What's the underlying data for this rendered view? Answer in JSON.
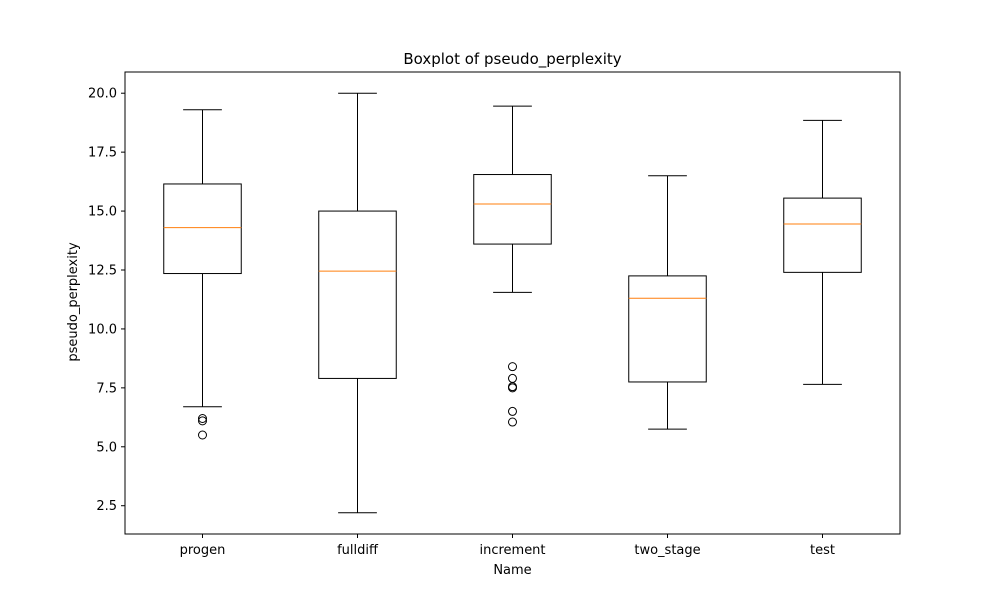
{
  "chart_data": {
    "type": "box",
    "title": "Boxplot of pseudo_perplexity",
    "xlabel": "Name",
    "ylabel": "pseudo_perplexity",
    "ylim": [
      1.3,
      20.9
    ],
    "yticks": [
      2.5,
      5.0,
      7.5,
      10.0,
      12.5,
      15.0,
      17.5,
      20.0
    ],
    "ytick_labels": [
      "2.5",
      "5.0",
      "7.5",
      "10.0",
      "12.5",
      "15.0",
      "17.5",
      "20.0"
    ],
    "grid": false,
    "categories": [
      "progen",
      "fulldiff",
      "increment",
      "two_stage",
      "test"
    ],
    "boxes": [
      {
        "name": "progen",
        "whisker_low": 6.7,
        "q1": 12.35,
        "median": 14.3,
        "q3": 16.15,
        "whisker_high": 19.3,
        "outliers": [
          6.2,
          6.1,
          5.5
        ]
      },
      {
        "name": "fulldiff",
        "whisker_low": 2.2,
        "q1": 7.9,
        "median": 12.45,
        "q3": 15.0,
        "whisker_high": 20.0,
        "outliers": []
      },
      {
        "name": "increment",
        "whisker_low": 11.55,
        "q1": 13.6,
        "median": 15.3,
        "q3": 16.55,
        "whisker_high": 19.45,
        "outliers": [
          8.4,
          7.9,
          7.55,
          7.5,
          6.5,
          6.05
        ]
      },
      {
        "name": "two_stage",
        "whisker_low": 5.75,
        "q1": 7.75,
        "median": 11.3,
        "q3": 12.25,
        "whisker_high": 16.5,
        "outliers": []
      },
      {
        "name": "test",
        "whisker_low": 7.65,
        "q1": 12.4,
        "median": 14.45,
        "q3": 15.55,
        "whisker_high": 18.85,
        "outliers": []
      }
    ],
    "colors": {
      "box": "#000000",
      "median": "#ff7f0e",
      "outlier": "#000000"
    }
  }
}
